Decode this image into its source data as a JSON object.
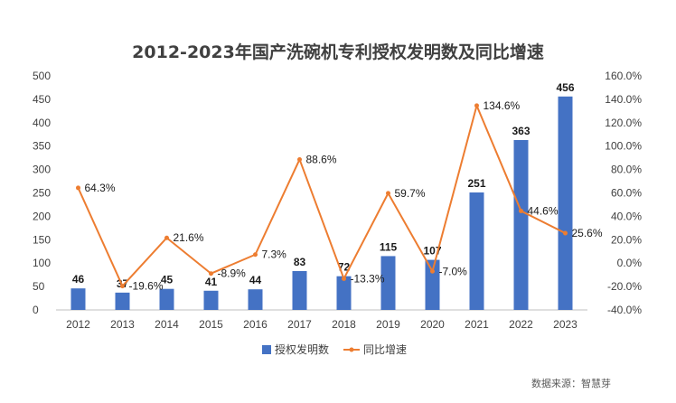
{
  "chart_data": {
    "type": "bar+line",
    "title": "2012-2023年国产洗碗机专利授权发明数及同比增速",
    "categories": [
      "2012",
      "2013",
      "2014",
      "2015",
      "2016",
      "2017",
      "2018",
      "2019",
      "2020",
      "2021",
      "2022",
      "2023"
    ],
    "series": [
      {
        "name": "授权发明数",
        "type": "bar",
        "axis": "left",
        "color": "#4472C4",
        "values": [
          46,
          37,
          45,
          41,
          44,
          83,
          72,
          115,
          107,
          251,
          363,
          456
        ],
        "labels": [
          "46",
          "37",
          "45",
          "41",
          "44",
          "83",
          "72",
          "115",
          "107",
          "251",
          "363",
          "456"
        ]
      },
      {
        "name": "同比增速",
        "type": "line",
        "axis": "right",
        "color": "#ED7D31",
        "values": [
          64.3,
          -19.6,
          21.6,
          -8.9,
          7.3,
          88.6,
          -13.3,
          59.7,
          -7.0,
          134.6,
          44.6,
          25.6
        ],
        "labels": [
          "64.3%",
          "-19.6%",
          "21.6%",
          "-8.9%",
          "7.3%",
          "88.6%",
          "-13.3%",
          "59.7%",
          "-7.0%",
          "134.6%",
          "44.6%",
          "25.6%"
        ]
      }
    ],
    "y_left": {
      "range": [
        0,
        500
      ],
      "ticks": [
        "0",
        "50",
        "100",
        "150",
        "200",
        "250",
        "300",
        "350",
        "400",
        "450",
        "500"
      ]
    },
    "y_right": {
      "range": [
        -40,
        160
      ],
      "ticks": [
        "-40.0%",
        "-20.0%",
        "0.0%",
        "20.0%",
        "40.0%",
        "60.0%",
        "80.0%",
        "100.0%",
        "120.0%",
        "140.0%",
        "160.0%"
      ]
    },
    "grid": false,
    "legend": "bottom-center"
  },
  "source_note": "数据来源：智慧芽"
}
